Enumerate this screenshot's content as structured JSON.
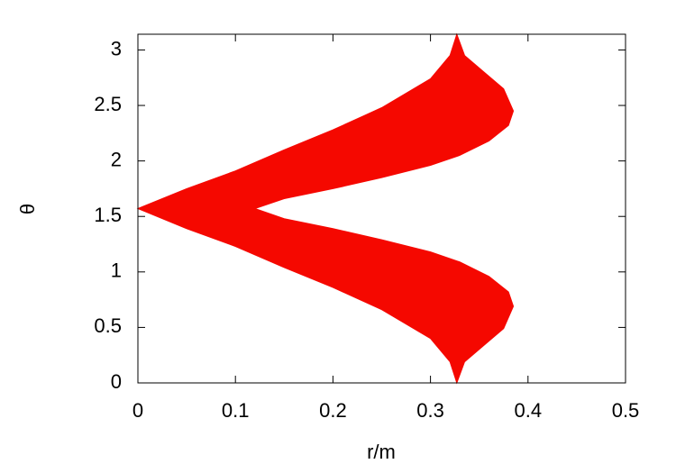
{
  "chart_data": {
    "type": "area",
    "x_label": "r/m",
    "y_label": "θ",
    "color": "#f50800",
    "x": [
      0,
      0.05,
      0.1,
      0.15,
      0.2,
      0.25,
      0.3,
      0.32,
      0.327,
      0.335,
      0.355,
      0.375,
      0.385,
      0.38,
      0.36,
      0.33,
      0.3,
      0.25,
      0.2,
      0.15,
      0.12,
      0.15,
      0.2,
      0.25,
      0.3,
      0.33,
      0.36,
      0.38,
      0.385,
      0.375,
      0.355,
      0.335,
      0.327,
      0.32,
      0.3,
      0.25,
      0.2,
      0.15,
      0.1,
      0.05
    ],
    "values": [
      1.5708,
      1.75,
      1.91,
      2.1,
      2.28,
      2.48,
      2.74,
      2.95,
      3.1416,
      2.95,
      2.8,
      2.65,
      2.45,
      2.32,
      2.18,
      2.05,
      1.96,
      1.85,
      1.75,
      1.66,
      1.5708,
      1.48,
      1.39,
      1.29,
      1.18,
      1.09,
      0.96,
      0.82,
      0.69,
      0.49,
      0.34,
      0.19,
      0,
      0.19,
      0.4,
      0.66,
      0.86,
      1.04,
      1.23,
      1.39
    ],
    "xlim": [
      0,
      0.5
    ],
    "xticks": [
      0,
      0.1,
      0.2,
      0.3,
      0.4,
      0.5
    ],
    "ylim": [
      0,
      3.1416
    ],
    "yticks": [
      0,
      0.5,
      1,
      1.5,
      2,
      2.5,
      3
    ]
  }
}
